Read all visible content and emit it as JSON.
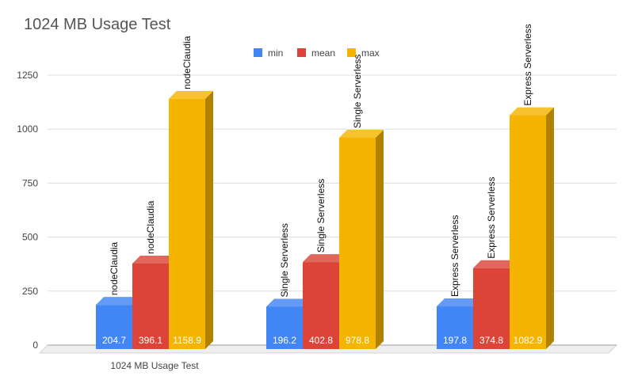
{
  "chart_data": {
    "type": "bar",
    "title": "1024 MB Usage Test",
    "xlabel": "1024 MB Usage Test",
    "ylabel": "",
    "categories": [
      "nodeClaudia",
      "Single Serverless",
      "Express Serverless"
    ],
    "series": [
      {
        "name": "min",
        "color": "#4285f4",
        "values": [
          204.7,
          196.2,
          197.8
        ]
      },
      {
        "name": "mean",
        "color": "#db4437",
        "values": [
          396.1,
          402.8,
          374.8
        ]
      },
      {
        "name": "max",
        "color": "#f4b400",
        "values": [
          1158.9,
          978.8,
          1082.9
        ]
      }
    ],
    "ylim": [
      0,
      1250
    ],
    "yticks": [
      0,
      250,
      500,
      750,
      1000,
      1250
    ],
    "grid": true,
    "legend_position": "top-center",
    "style": "3d-bars"
  }
}
